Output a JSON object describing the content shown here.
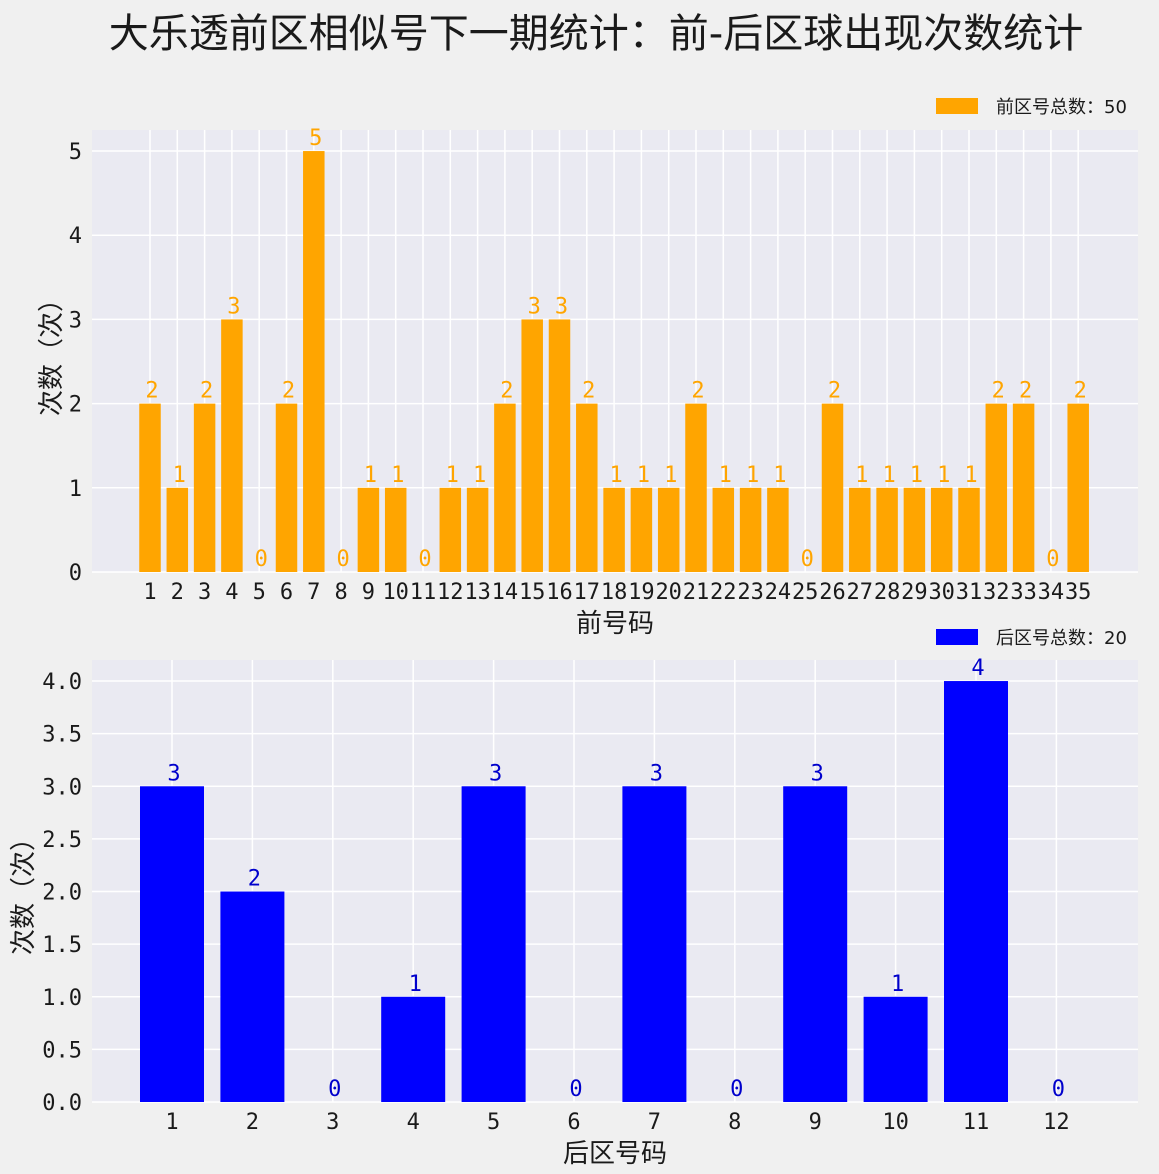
{
  "title": "大乐透前区相似号下一期统计：前-后区球出现次数统计",
  "chart_data": [
    {
      "type": "bar",
      "color": "#ffa500",
      "label_color": "#ffa500",
      "categories": [
        "1",
        "2",
        "3",
        "4",
        "5",
        "6",
        "7",
        "8",
        "9",
        "10",
        "11",
        "12",
        "13",
        "14",
        "15",
        "16",
        "17",
        "18",
        "19",
        "20",
        "21",
        "22",
        "23",
        "24",
        "25",
        "26",
        "27",
        "28",
        "29",
        "30",
        "31",
        "32",
        "33",
        "34",
        "35"
      ],
      "series": [
        {
          "name": "前区号总数：50",
          "values": [
            2,
            1,
            2,
            3,
            0,
            2,
            5,
            0,
            1,
            1,
            0,
            1,
            1,
            2,
            3,
            3,
            2,
            1,
            1,
            1,
            2,
            1,
            1,
            1,
            0,
            2,
            1,
            1,
            1,
            1,
            1,
            2,
            2,
            0,
            2
          ]
        }
      ],
      "xlabel": "前号码",
      "ylabel": "次数（次）",
      "ylim": [
        0,
        5.25
      ],
      "yticks": [
        "0",
        "1",
        "2",
        "3",
        "4",
        "5"
      ],
      "grid": true,
      "legend": "top-right"
    },
    {
      "type": "bar",
      "color": "#0000ff",
      "label_color": "#0000cc",
      "categories": [
        "1",
        "2",
        "3",
        "4",
        "5",
        "6",
        "7",
        "8",
        "9",
        "10",
        "11",
        "12"
      ],
      "series": [
        {
          "name": "后区号总数：20",
          "values": [
            3,
            2,
            0,
            1,
            3,
            0,
            3,
            0,
            3,
            1,
            4,
            0
          ]
        }
      ],
      "xlabel": "后区号码",
      "ylabel": "次数（次）",
      "ylim": [
        0,
        4.2
      ],
      "yticks": [
        "0.0",
        "0.5",
        "1.0",
        "1.5",
        "2.0",
        "2.5",
        "3.0",
        "3.5",
        "4.0"
      ],
      "grid": true,
      "legend": "top-right"
    }
  ]
}
